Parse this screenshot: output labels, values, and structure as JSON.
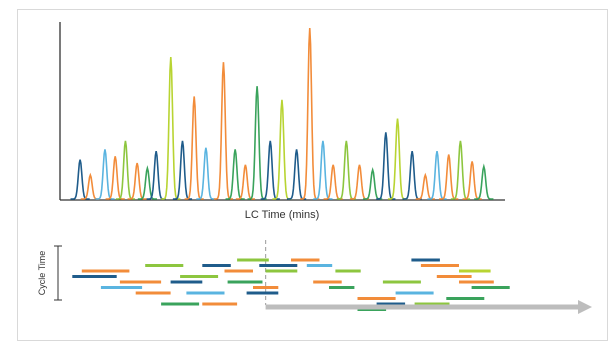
{
  "chart_data": [
    {
      "type": "line",
      "title": "",
      "xlabel": "LC Time (mins)",
      "ylabel": "",
      "grid": false,
      "legend": "none",
      "x_range": [
        0,
        100
      ],
      "y_range": [
        0,
        100
      ],
      "peaks": [
        {
          "x": 5.5,
          "h": 23,
          "color": "#1f5c8b"
        },
        {
          "x": 9,
          "h": 14,
          "color": "#f28c3a"
        },
        {
          "x": 14,
          "h": 29,
          "color": "#5ab4e0"
        },
        {
          "x": 17.5,
          "h": 25,
          "color": "#f28c3a"
        },
        {
          "x": 21,
          "h": 34,
          "color": "#8dc63f"
        },
        {
          "x": 25,
          "h": 21,
          "color": "#f28c3a"
        },
        {
          "x": 28.5,
          "h": 18,
          "color": "#3aa35c"
        },
        {
          "x": 31.5,
          "h": 28,
          "color": "#1f5c8b"
        },
        {
          "x": 36.5,
          "h": 83,
          "color": "#b8d432"
        },
        {
          "x": 40.5,
          "h": 34,
          "color": "#1f5c8b"
        },
        {
          "x": 44.5,
          "h": 60,
          "color": "#f28c3a"
        },
        {
          "x": 48.5,
          "h": 30,
          "color": "#5ab4e0"
        },
        {
          "x": 54.5,
          "h": 80,
          "color": "#f28c3a"
        },
        {
          "x": 58.5,
          "h": 29,
          "color": "#3aa35c"
        },
        {
          "x": 62,
          "h": 20,
          "color": "#f28c3a"
        },
        {
          "x": 66,
          "h": 66,
          "color": "#3aa35c"
        },
        {
          "x": 70.5,
          "h": 34,
          "color": "#1f5c8b"
        },
        {
          "x": 74.5,
          "h": 58,
          "color": "#b8d432"
        },
        {
          "x": 79.5,
          "h": 29,
          "color": "#1f5c8b"
        },
        {
          "x": 84,
          "h": 100,
          "color": "#f28c3a"
        },
        {
          "x": 88.5,
          "h": 34,
          "color": "#5ab4e0"
        },
        {
          "x": 92,
          "h": 20,
          "color": "#f28c3a"
        },
        {
          "x": 96.5,
          "h": 34,
          "color": "#8dc63f"
        },
        {
          "x": 101,
          "h": 20,
          "color": "#f28c3a"
        },
        {
          "x": 105.5,
          "h": 17,
          "color": "#3aa35c"
        },
        {
          "x": 110,
          "h": 39,
          "color": "#1f5c8b"
        },
        {
          "x": 114,
          "h": 47,
          "color": "#b8d432"
        },
        {
          "x": 119,
          "h": 28,
          "color": "#1f5c8b"
        },
        {
          "x": 123.5,
          "h": 14,
          "color": "#f28c3a"
        },
        {
          "x": 127.5,
          "h": 28,
          "color": "#5ab4e0"
        },
        {
          "x": 131.5,
          "h": 26,
          "color": "#f28c3a"
        },
        {
          "x": 135.5,
          "h": 34,
          "color": "#8dc63f"
        },
        {
          "x": 139.5,
          "h": 22,
          "color": "#f28c3a"
        },
        {
          "x": 143.5,
          "h": 19,
          "color": "#3aa35c"
        }
      ],
      "x_domain": [
        0,
        148
      ]
    },
    {
      "type": "gantt",
      "ylabel": "Cycle Time",
      "dashed_marker_x": 63,
      "segments": [
        {
          "x0": 5,
          "x1": 20,
          "row": 0,
          "color": "#f28c3a"
        },
        {
          "x0": 17,
          "x1": 30,
          "row": 2,
          "color": "#f28c3a"
        },
        {
          "x0": 2,
          "x1": 16,
          "row": 1,
          "color": "#1f5c8b"
        },
        {
          "x0": 11,
          "x1": 24,
          "row": 3,
          "color": "#5ab4e0"
        },
        {
          "x0": 22,
          "x1": 33,
          "row": 4,
          "color": "#f28c3a"
        },
        {
          "x0": 25,
          "x1": 37,
          "row": -1,
          "color": "#8dc63f"
        },
        {
          "x0": 30,
          "x1": 42,
          "row": 6,
          "color": "#3aa35c"
        },
        {
          "x0": 33,
          "x1": 43,
          "row": 2,
          "color": "#1f5c8b"
        },
        {
          "x0": 36,
          "x1": 48,
          "row": 1,
          "color": "#8dc63f"
        },
        {
          "x0": 38,
          "x1": 50,
          "row": 4,
          "color": "#5ab4e0"
        },
        {
          "x0": 43,
          "x1": 52,
          "row": -1,
          "color": "#1f5c8b"
        },
        {
          "x0": 43,
          "x1": 54,
          "row": 6,
          "color": "#f28c3a"
        },
        {
          "x0": 50,
          "x1": 59,
          "row": 0,
          "color": "#f28c3a"
        },
        {
          "x0": 51,
          "x1": 62,
          "row": 2,
          "color": "#3aa35c"
        },
        {
          "x0": 54,
          "x1": 64,
          "row": -2,
          "color": "#8dc63f"
        },
        {
          "x0": 57,
          "x1": 67,
          "row": 4,
          "color": "#1f5c8b"
        },
        {
          "x0": 59,
          "x1": 67,
          "row": 3,
          "color": "#f28c3a"
        },
        {
          "x0": 61,
          "x1": 73,
          "row": -1,
          "color": "#1f5c8b"
        },
        {
          "x0": 63,
          "x1": 73,
          "row": 0,
          "color": "#8dc63f"
        },
        {
          "x0": 71,
          "x1": 80,
          "row": -2,
          "color": "#f28c3a"
        },
        {
          "x0": 76,
          "x1": 84,
          "row": -1,
          "color": "#5ab4e0"
        },
        {
          "x0": 78,
          "x1": 87,
          "row": 2,
          "color": "#f28c3a"
        },
        {
          "x0": 85,
          "x1": 93,
          "row": 0,
          "color": "#8dc63f"
        },
        {
          "x0": 83,
          "x1": 91,
          "row": 3,
          "color": "#3aa35c"
        },
        {
          "x0": 92,
          "x1": 104,
          "row": 5,
          "color": "#f28c3a"
        },
        {
          "x0": 98,
          "x1": 107,
          "row": 6,
          "color": "#1f5c8b"
        },
        {
          "x0": 92,
          "x1": 101,
          "row": 7,
          "color": "#3aa35c"
        },
        {
          "x0": 100,
          "x1": 112,
          "row": 2,
          "color": "#8dc63f"
        },
        {
          "x0": 104,
          "x1": 116,
          "row": 4,
          "color": "#5ab4e0"
        },
        {
          "x0": 109,
          "x1": 118,
          "row": -2,
          "color": "#1f5c8b"
        },
        {
          "x0": 112,
          "x1": 124,
          "row": -1,
          "color": "#f28c3a"
        },
        {
          "x0": 117,
          "x1": 128,
          "row": 1,
          "color": "#f28c3a"
        },
        {
          "x0": 120,
          "x1": 132,
          "row": 5,
          "color": "#3aa35c"
        },
        {
          "x0": 124,
          "x1": 135,
          "row": 2,
          "color": "#f28c3a"
        },
        {
          "x0": 128,
          "x1": 140,
          "row": 3,
          "color": "#3aa35c"
        },
        {
          "x0": 110,
          "x1": 121,
          "row": 6,
          "color": "#8dc63f"
        },
        {
          "x0": 124,
          "x1": 134,
          "row": 0,
          "color": "#b8d432"
        }
      ],
      "arrow_color": "#bdbdbd"
    }
  ],
  "colors": {
    "dark_blue": "#1f5c8b",
    "orange": "#f28c3a",
    "light_blue": "#5ab4e0",
    "green": "#3aa35c",
    "lime": "#8dc63f",
    "yellow_green": "#b8d432",
    "arrow": "#bdbdbd"
  }
}
